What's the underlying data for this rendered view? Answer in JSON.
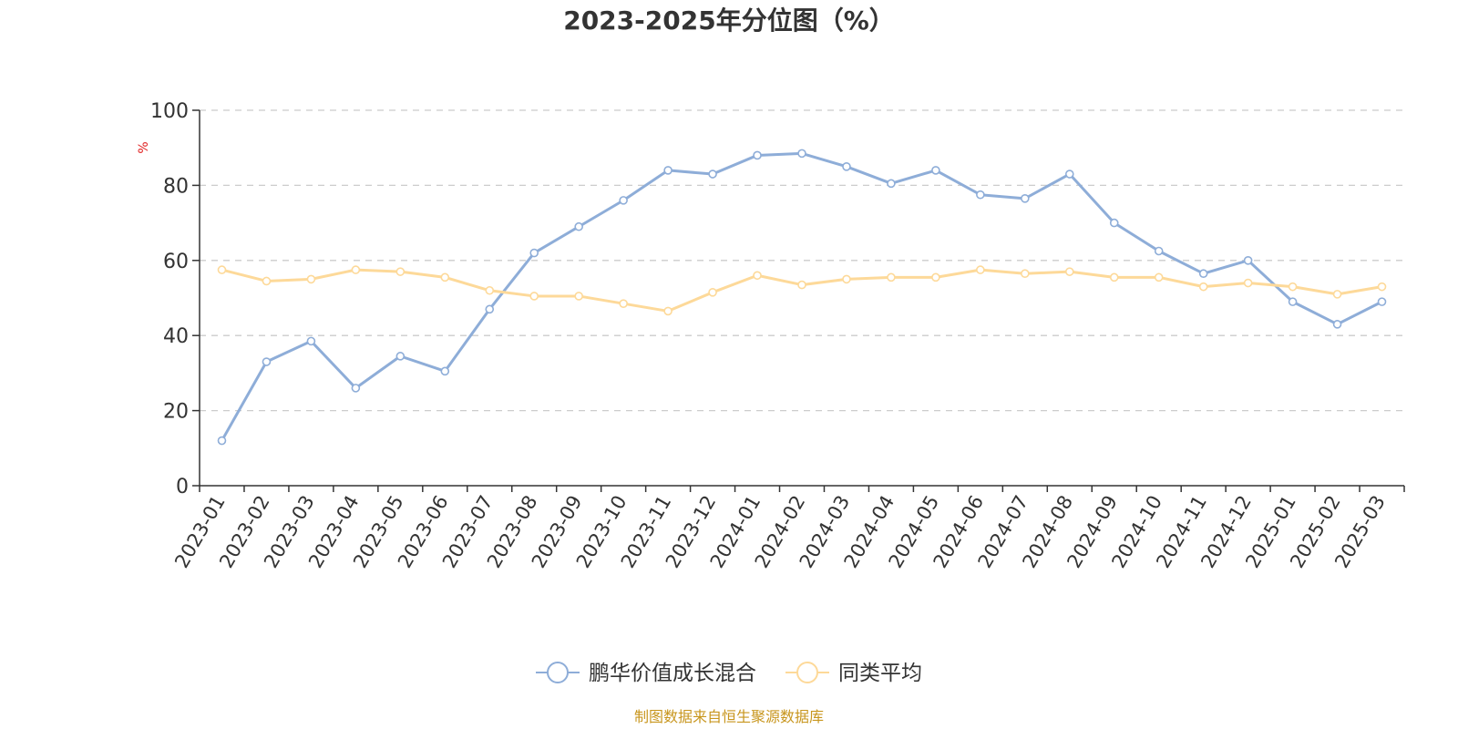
{
  "chart_data": {
    "type": "line",
    "title": "2023-2025年分位图（%）",
    "ylabel": "%",
    "ylim": [
      0,
      100
    ],
    "yticks": [
      0,
      20,
      40,
      60,
      80,
      100
    ],
    "grid": true,
    "legend_position": "bottom-center",
    "categories": [
      "2023-01",
      "2023-02",
      "2023-03",
      "2023-04",
      "2023-05",
      "2023-06",
      "2023-07",
      "2023-08",
      "2023-09",
      "2023-10",
      "2023-11",
      "2023-12",
      "2024-01",
      "2024-02",
      "2024-03",
      "2024-04",
      "2024-05",
      "2024-06",
      "2024-07",
      "2024-08",
      "2024-09",
      "2024-10",
      "2024-11",
      "2024-12",
      "2025-01",
      "2025-02",
      "2025-03"
    ],
    "series": [
      {
        "name": "鹏华价值成长混合",
        "color": "#8eadd8",
        "values": [
          12,
          33,
          38.5,
          26,
          34.5,
          30.5,
          47,
          62,
          69,
          76,
          84,
          83,
          88,
          88.5,
          85,
          80.5,
          84,
          77.5,
          76.5,
          83,
          70,
          62.5,
          56.5,
          60,
          49,
          43,
          49
        ]
      },
      {
        "name": "同类平均",
        "color": "#fdd999",
        "values": [
          57.5,
          54.5,
          55,
          57.5,
          57,
          55.5,
          52,
          50.5,
          50.5,
          48.5,
          46.5,
          51.5,
          56,
          53.5,
          55,
          55.5,
          55.5,
          57.5,
          56.5,
          57,
          55.5,
          55.5,
          53,
          54,
          53,
          51,
          53
        ]
      }
    ],
    "unit_color": "#e02020"
  },
  "source": {
    "text": "制图数据来自恒生聚源数据库",
    "color": "#c8961e"
  }
}
